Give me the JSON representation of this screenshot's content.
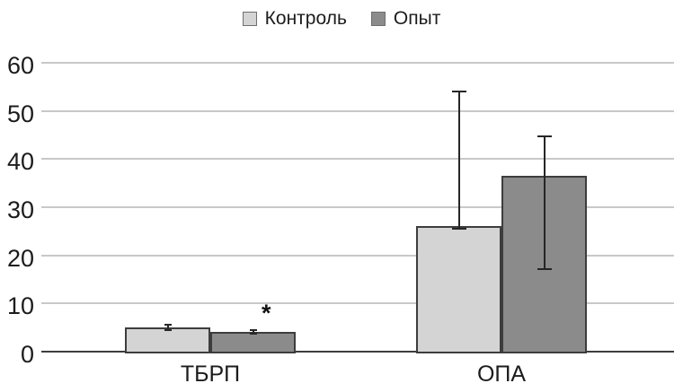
{
  "chart_data": {
    "type": "bar",
    "title": "",
    "xlabel": "",
    "ylabel": "",
    "categories": [
      "ТБРП",
      "ОПА"
    ],
    "series": [
      {
        "name": "Контроль",
        "color": "#d4d4d4",
        "values": [
          5.0,
          26.0
        ],
        "error_top": [
          5.5,
          54.0
        ],
        "error_bottom": [
          4.5,
          25.5
        ]
      },
      {
        "name": "Опыт",
        "color": "#8b8b8b",
        "values": [
          4.1,
          36.5
        ],
        "error_top": [
          4.4,
          44.8
        ],
        "error_bottom": [
          3.8,
          17.2
        ]
      }
    ],
    "yticks": [
      0,
      10,
      20,
      30,
      40,
      50,
      60
    ],
    "ylim": [
      0,
      60
    ],
    "grid": true,
    "legend_position": "top-center",
    "annotations": [
      {
        "text": "*",
        "attached_to": "ТБРП / Опыт (above bar)"
      }
    ],
    "colors": {
      "background": "#ffffff",
      "gridline": "#c8c8c8",
      "axis_line": "#3d3d3d",
      "bar_border": "#3d3d3d",
      "error_bar": "#262626",
      "text": "#1c1c1c"
    }
  }
}
